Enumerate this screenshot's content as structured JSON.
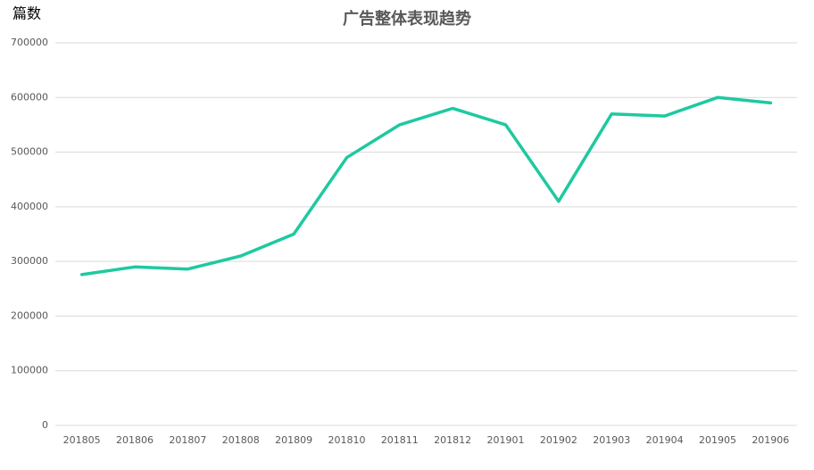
{
  "chart_data": {
    "type": "line",
    "title": "广告整体表现趋势",
    "y_label": "篇数",
    "categories": [
      "201805",
      "201806",
      "201807",
      "201808",
      "201809",
      "201810",
      "201811",
      "201812",
      "201901",
      "201902",
      "201903",
      "201904",
      "201905",
      "201906"
    ],
    "series": [
      {
        "name": "篇数",
        "color": "#1ec9a0",
        "values": [
          276000,
          290000,
          286000,
          310000,
          350000,
          490000,
          550000,
          580000,
          550000,
          410000,
          570000,
          566000,
          600000,
          590000
        ]
      }
    ],
    "ylim": [
      0,
      700000
    ],
    "yticks": [
      0,
      100000,
      200000,
      300000,
      400000,
      500000,
      600000,
      700000
    ],
    "grid": true
  }
}
